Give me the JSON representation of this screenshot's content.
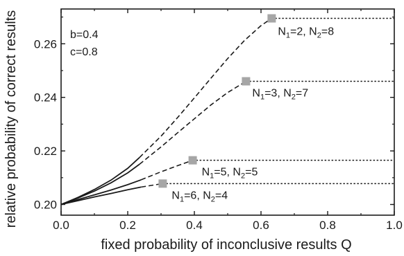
{
  "chart_data": {
    "type": "line",
    "title": "",
    "xlabel": "fixed probability of inconclusive results Q",
    "ylabel": "relative probability of correct results",
    "xlim": [
      0.0,
      1.0
    ],
    "ylim": [
      0.196,
      0.273
    ],
    "x_ticks": [
      0.0,
      0.2,
      0.4,
      0.6,
      0.8,
      1.0
    ],
    "x_tick_labels": [
      "0.0",
      "0.2",
      "0.4",
      "0.6",
      "0.8",
      "1.0"
    ],
    "y_ticks": [
      0.2,
      0.22,
      0.24,
      0.26
    ],
    "y_tick_labels": [
      "0.20",
      "0.22",
      "0.24",
      "0.26"
    ],
    "grid": false,
    "parameters": [
      "b=0.4",
      "c=0.8"
    ],
    "series": [
      {
        "label_parts": [
          "N",
          "1",
          "=2,  N",
          "2",
          "=8"
        ],
        "solid_end_q": 0.235,
        "peak": [
          0.632,
          0.2695
        ],
        "curve": [
          [
            0.0,
            0.2
          ],
          [
            0.05,
            0.2026
          ],
          [
            0.1,
            0.2056
          ],
          [
            0.15,
            0.2091
          ],
          [
            0.2,
            0.2135
          ],
          [
            0.235,
            0.2175
          ],
          [
            0.3,
            0.2255
          ],
          [
            0.35,
            0.2325
          ],
          [
            0.4,
            0.2398
          ],
          [
            0.45,
            0.2472
          ],
          [
            0.5,
            0.2545
          ],
          [
            0.55,
            0.2612
          ],
          [
            0.6,
            0.2668
          ],
          [
            0.632,
            0.2695
          ]
        ],
        "plateau": [
          [
            0.632,
            0.2695
          ],
          [
            1.0,
            0.2695
          ]
        ]
      },
      {
        "label_parts": [
          "N",
          "1",
          "=3,  N",
          "2",
          "=7"
        ],
        "solid_end_q": 0.235,
        "peak": [
          0.555,
          0.246
        ],
        "curve": [
          [
            0.0,
            0.2
          ],
          [
            0.05,
            0.2024
          ],
          [
            0.1,
            0.205
          ],
          [
            0.15,
            0.2081
          ],
          [
            0.2,
            0.2118
          ],
          [
            0.235,
            0.215
          ],
          [
            0.3,
            0.2215
          ],
          [
            0.35,
            0.2268
          ],
          [
            0.4,
            0.232
          ],
          [
            0.45,
            0.2372
          ],
          [
            0.5,
            0.2418
          ],
          [
            0.555,
            0.246
          ]
        ],
        "plateau": [
          [
            0.555,
            0.246
          ],
          [
            1.0,
            0.246
          ]
        ]
      },
      {
        "label_parts": [
          "N",
          "1",
          "=5,  N",
          "2",
          "=5"
        ],
        "solid_end_q": 0.24,
        "peak": [
          0.395,
          0.2165
        ],
        "curve": [
          [
            0.0,
            0.2
          ],
          [
            0.05,
            0.2018
          ],
          [
            0.1,
            0.2036
          ],
          [
            0.15,
            0.2054
          ],
          [
            0.2,
            0.2074
          ],
          [
            0.24,
            0.2092
          ],
          [
            0.3,
            0.2122
          ],
          [
            0.35,
            0.2145
          ],
          [
            0.395,
            0.2165
          ]
        ],
        "plateau": [
          [
            0.395,
            0.2165
          ],
          [
            1.0,
            0.2165
          ]
        ]
      },
      {
        "label_parts": [
          "N",
          "1",
          "=6,  N",
          "2",
          "=4"
        ],
        "solid_end_q": 0.24,
        "peak": [
          0.305,
          0.2078
        ],
        "curve": [
          [
            0.0,
            0.2
          ],
          [
            0.05,
            0.2014
          ],
          [
            0.1,
            0.2028
          ],
          [
            0.15,
            0.2041
          ],
          [
            0.2,
            0.2055
          ],
          [
            0.24,
            0.2065
          ],
          [
            0.28,
            0.2073
          ],
          [
            0.305,
            0.2078
          ]
        ],
        "plateau": [
          [
            0.305,
            0.2078
          ],
          [
            1.0,
            0.2078
          ]
        ]
      }
    ],
    "marker_color": "#a6a6a6",
    "line_color": "#1a1a1a"
  }
}
